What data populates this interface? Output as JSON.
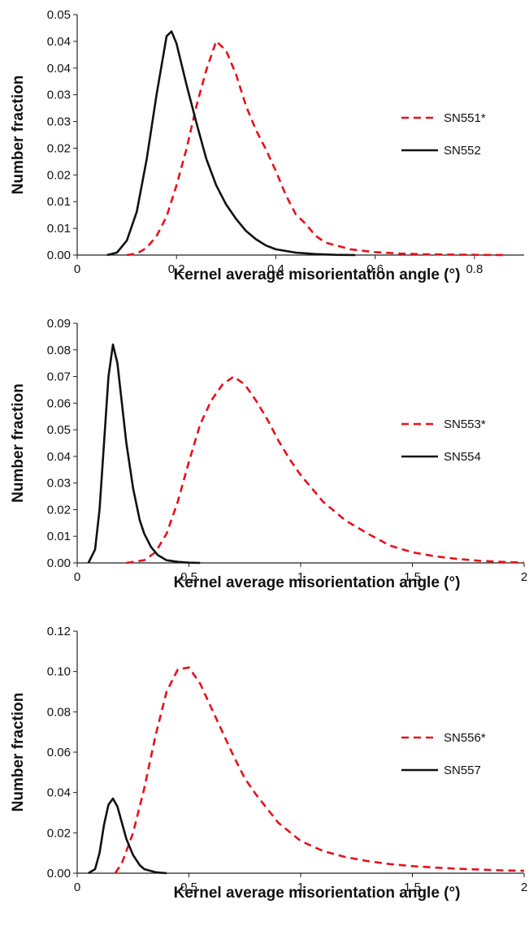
{
  "chart_data": [
    {
      "type": "line",
      "xlabel": "Kernel average misorientation angle (°)",
      "ylabel": "Number fraction",
      "xlim": [
        0,
        0.9
      ],
      "ylim": [
        0,
        0.05
      ],
      "x_ticks": [
        "0",
        "0.2",
        "0.4",
        "0.6",
        "0.8"
      ],
      "y_ticks": [
        "0.00",
        "0.01",
        "0.01",
        "0.02",
        "0.02",
        "0.03",
        "0.03",
        "0.04",
        "0.04",
        "0.05"
      ],
      "legend_position": "right",
      "series": [
        {
          "name": "SN551*",
          "color": "#e8101a",
          "dash": "dashed",
          "x": [
            0.1,
            0.12,
            0.14,
            0.16,
            0.18,
            0.2,
            0.22,
            0.24,
            0.26,
            0.28,
            0.3,
            0.32,
            0.34,
            0.36,
            0.38,
            0.4,
            0.42,
            0.44,
            0.46,
            0.48,
            0.5,
            0.55,
            0.6,
            0.65,
            0.7,
            0.75,
            0.8,
            0.86
          ],
          "y": [
            0.0,
            0.0003,
            0.0015,
            0.004,
            0.008,
            0.0145,
            0.022,
            0.031,
            0.0385,
            0.0445,
            0.0425,
            0.0375,
            0.031,
            0.026,
            0.022,
            0.0175,
            0.0125,
            0.0085,
            0.0065,
            0.004,
            0.0026,
            0.0012,
            0.0006,
            0.0003,
            0.00015,
            0.0001,
            5e-05,
            0.0
          ]
        },
        {
          "name": "SN552",
          "color": "#111111",
          "dash": "solid",
          "x": [
            0.06,
            0.08,
            0.1,
            0.12,
            0.14,
            0.16,
            0.18,
            0.19,
            0.2,
            0.22,
            0.24,
            0.26,
            0.28,
            0.3,
            0.32,
            0.34,
            0.36,
            0.38,
            0.4,
            0.44,
            0.48,
            0.52,
            0.56
          ],
          "y": [
            0.0,
            0.0005,
            0.003,
            0.009,
            0.02,
            0.0335,
            0.0455,
            0.0465,
            0.044,
            0.0355,
            0.0275,
            0.02,
            0.0145,
            0.0105,
            0.0075,
            0.005,
            0.0033,
            0.002,
            0.0012,
            0.0005,
            0.0002,
            5e-05,
            0.0
          ]
        }
      ]
    },
    {
      "type": "line",
      "xlabel": "Kernel average misorientation angle (°)",
      "ylabel": "Number fraction",
      "xlim": [
        0,
        2
      ],
      "ylim": [
        0,
        0.09
      ],
      "x_ticks": [
        "0",
        "0.5",
        "1",
        "1.5",
        "2"
      ],
      "y_ticks": [
        "0.00",
        "0.01",
        "0.02",
        "0.03",
        "0.04",
        "0.05",
        "0.06",
        "0.07",
        "0.08",
        "0.09"
      ],
      "legend_position": "right",
      "series": [
        {
          "name": "SN553*",
          "color": "#e8101a",
          "dash": "dashed",
          "x": [
            0.22,
            0.3,
            0.35,
            0.4,
            0.45,
            0.5,
            0.55,
            0.6,
            0.65,
            0.7,
            0.75,
            0.8,
            0.85,
            0.9,
            0.95,
            1.0,
            1.1,
            1.2,
            1.3,
            1.4,
            1.5,
            1.6,
            1.7,
            1.8,
            1.9,
            2.0
          ],
          "y": [
            0.0,
            0.001,
            0.004,
            0.011,
            0.023,
            0.038,
            0.052,
            0.061,
            0.067,
            0.07,
            0.067,
            0.061,
            0.054,
            0.046,
            0.039,
            0.033,
            0.023,
            0.016,
            0.011,
            0.0065,
            0.004,
            0.0025,
            0.0015,
            0.0008,
            0.0004,
            0.0001
          ]
        },
        {
          "name": "SN554",
          "color": "#111111",
          "dash": "solid",
          "x": [
            0.05,
            0.08,
            0.1,
            0.12,
            0.14,
            0.16,
            0.18,
            0.2,
            0.22,
            0.25,
            0.28,
            0.3,
            0.33,
            0.36,
            0.4,
            0.45,
            0.5,
            0.55
          ],
          "y": [
            0.0,
            0.005,
            0.02,
            0.045,
            0.07,
            0.082,
            0.075,
            0.06,
            0.045,
            0.028,
            0.016,
            0.011,
            0.006,
            0.003,
            0.001,
            0.0004,
            0.0001,
            0.0
          ]
        }
      ]
    },
    {
      "type": "line",
      "xlabel": "Kernel average misorientation angle (°)",
      "ylabel": "Number fraction",
      "xlim": [
        0,
        2
      ],
      "ylim": [
        0,
        0.12
      ],
      "x_ticks": [
        "0",
        "0.5",
        "1",
        "1.5",
        "2"
      ],
      "y_ticks": [
        "0.00",
        "0.02",
        "0.04",
        "0.06",
        "0.08",
        "0.10",
        "0.12"
      ],
      "legend_position": "right",
      "series": [
        {
          "name": "SN556*",
          "color": "#e8101a",
          "dash": "dashed",
          "x": [
            0.17,
            0.2,
            0.25,
            0.3,
            0.35,
            0.4,
            0.45,
            0.5,
            0.55,
            0.6,
            0.65,
            0.7,
            0.75,
            0.8,
            0.9,
            1.0,
            1.1,
            1.2,
            1.3,
            1.4,
            1.5,
            1.6,
            1.7,
            1.8,
            1.9,
            2.0
          ],
          "y": [
            0.0,
            0.005,
            0.02,
            0.042,
            0.068,
            0.09,
            0.101,
            0.102,
            0.094,
            0.082,
            0.07,
            0.058,
            0.047,
            0.039,
            0.025,
            0.016,
            0.011,
            0.008,
            0.006,
            0.0045,
            0.0035,
            0.0028,
            0.0022,
            0.0018,
            0.0014,
            0.0012
          ]
        },
        {
          "name": "SN557",
          "color": "#111111",
          "dash": "solid",
          "x": [
            0.05,
            0.08,
            0.1,
            0.12,
            0.14,
            0.16,
            0.18,
            0.2,
            0.22,
            0.25,
            0.28,
            0.3,
            0.35,
            0.4
          ],
          "y": [
            0.0,
            0.002,
            0.01,
            0.024,
            0.034,
            0.037,
            0.033,
            0.025,
            0.017,
            0.009,
            0.004,
            0.002,
            0.0005,
            0.0
          ]
        }
      ]
    }
  ]
}
